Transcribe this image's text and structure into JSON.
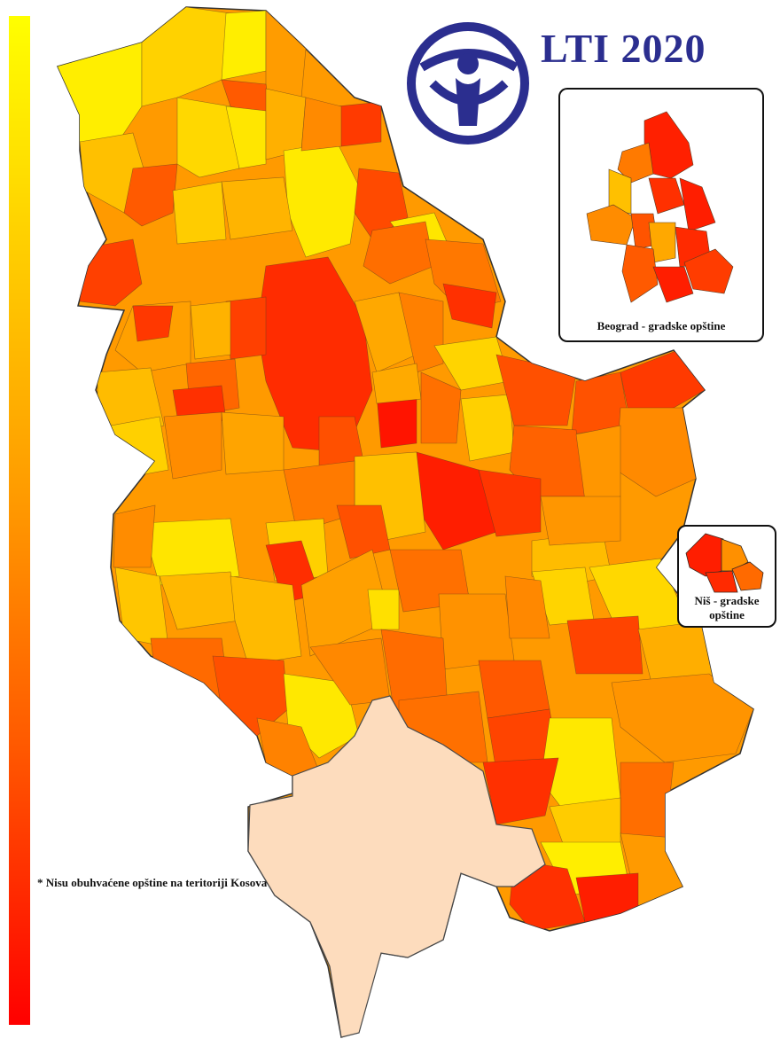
{
  "title": "LTI 2020",
  "colors": {
    "scale_low": "#ffff00",
    "scale_high": "#ff0000",
    "kosovo": "#fddcbd",
    "logo": "#2b2e8f",
    "outline": "#333333"
  },
  "legend": {
    "type": "continuous color scale",
    "orientation": "vertical",
    "top_color": "#ffff00",
    "bottom_color": "#ff0000"
  },
  "insets": {
    "belgrade": {
      "label": "Beograd - gradske opštine"
    },
    "nis": {
      "label": "Niš - gradske opštine"
    }
  },
  "footnote": "* Nisu obuhvaćene opštine na teritoriji Kosova",
  "logo": {
    "icon": "transparency-international-logo"
  }
}
